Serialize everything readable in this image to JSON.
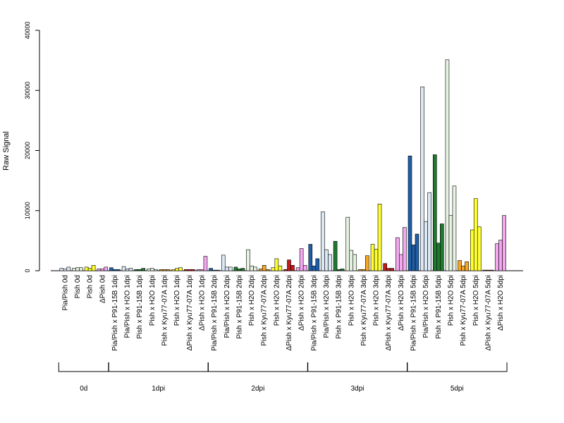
{
  "chart_data": {
    "type": "bar",
    "ylabel": "Raw Signal",
    "ylim": [
      0,
      40000
    ],
    "yticks": [
      0,
      10000,
      20000,
      30000,
      40000
    ],
    "ytick_labels": [
      "0",
      "10000",
      "20000",
      "30000",
      "40000"
    ],
    "groups": [
      {
        "name": "0d",
        "first": 0,
        "last": 3
      },
      {
        "name": "1dpi",
        "first": 4,
        "last": 11
      },
      {
        "name": "2dpi",
        "first": 12,
        "last": 19
      },
      {
        "name": "3dpi",
        "first": 20,
        "last": 27
      },
      {
        "name": "5dpi",
        "first": 28,
        "last": 35
      }
    ],
    "categories": [
      {
        "label": "Pia/Pish 0d",
        "color": "#dde8f5",
        "values": [
          400,
          300,
          600
        ]
      },
      {
        "label": "Pish 0d",
        "color": "#e6f2e2",
        "values": [
          400,
          500,
          500
        ]
      },
      {
        "label": "Pish 0d",
        "color": "#ffff33",
        "values": [
          600,
          400,
          900
        ]
      },
      {
        "label": "ΔPish 0d",
        "color": "#f4a8f0",
        "values": [
          300,
          300,
          600
        ]
      },
      {
        "label": "Pia/Pish x P91-15B 1dpi",
        "color": "#1f5fa8",
        "values": [
          500,
          200,
          200
        ]
      },
      {
        "label": "Pia/Pish x H2O 1dpi",
        "color": "#dde8f5",
        "values": [
          700,
          300,
          400
        ]
      },
      {
        "label": "Pish x P91-15B 1dpi",
        "color": "#1f7a2e",
        "values": [
          200,
          200,
          400
        ]
      },
      {
        "label": "Pish x H2O 1dpi",
        "color": "#e6f2e2",
        "values": [
          300,
          400,
          200
        ]
      },
      {
        "label": "Pish x Kyu77-07A 1dpi",
        "color": "#f5a623",
        "values": [
          200,
          200,
          200
        ]
      },
      {
        "label": "Pish x H2O 1dpi",
        "color": "#ffff33",
        "values": [
          200,
          400,
          500
        ]
      },
      {
        "label": "ΔPish x Kyu77-07A 1dpi",
        "color": "#c41a1a",
        "values": [
          200,
          200,
          200
        ]
      },
      {
        "label": "ΔPish x H2O 1dpi",
        "color": "#f4a8f0",
        "values": [
          200,
          200,
          2400
        ]
      },
      {
        "label": "Pia/Pish x P91-15B 2dpi",
        "color": "#1f5fa8",
        "values": [
          400,
          100,
          100
        ]
      },
      {
        "label": "Pia/Pish x H2O 2dpi",
        "color": "#dde8f5",
        "values": [
          2600,
          600,
          600
        ]
      },
      {
        "label": "Pish x P91-15B 2dpi",
        "color": "#1f7a2e",
        "values": [
          600,
          300,
          400
        ]
      },
      {
        "label": "Pish x H2O 2dpi",
        "color": "#e6f2e2",
        "values": [
          3500,
          800,
          600
        ]
      },
      {
        "label": "Pish x Kyu77-07A 2dpi",
        "color": "#f5a623",
        "values": [
          300,
          900,
          200
        ]
      },
      {
        "label": "Pish x H2O 2dpi",
        "color": "#ffff33",
        "values": [
          500,
          2000,
          800
        ]
      },
      {
        "label": "ΔPish x Kyu77-07A 2dpi",
        "color": "#c41a1a",
        "values": [
          200,
          1800,
          900
        ]
      },
      {
        "label": "ΔPish x H2O 2dpi",
        "color": "#f4a8f0",
        "values": [
          500,
          3700,
          900
        ]
      },
      {
        "label": "Pia/Pish x P91-15B 3dpi",
        "color": "#1f5fa8",
        "values": [
          4400,
          800,
          2000
        ]
      },
      {
        "label": "Pia/Pish x H2O 3dpi",
        "color": "#dde8f5",
        "values": [
          9800,
          3500,
          2700
        ]
      },
      {
        "label": "Pish x P91-15B 3dpi",
        "color": "#1f7a2e",
        "values": [
          4900,
          200,
          300
        ]
      },
      {
        "label": "Pish x H2O 3dpi",
        "color": "#e6f2e2",
        "values": [
          8900,
          3400,
          2700
        ]
      },
      {
        "label": "Pish x Kyu77-07A 3dpi",
        "color": "#f5a623",
        "values": [
          200,
          200,
          2500
        ]
      },
      {
        "label": "Pish x H2O 3dpi",
        "color": "#ffff33",
        "values": [
          4400,
          3600,
          11100
        ]
      },
      {
        "label": "ΔPish x Kyu77-07A 3dpi",
        "color": "#c41a1a",
        "values": [
          1200,
          400,
          400
        ]
      },
      {
        "label": "ΔPish x H2O 3dpi",
        "color": "#f4a8f0",
        "values": [
          5500,
          2700,
          7200
        ]
      },
      {
        "label": "Pia/Pish x P91-15B 5dpi",
        "color": "#1f5fa8",
        "values": [
          19100,
          4300,
          6100
        ]
      },
      {
        "label": "Pia/Pish x H2O 5dpi",
        "color": "#dde8f5",
        "values": [
          30600,
          8200,
          13000
        ]
      },
      {
        "label": "Pish x P91-15B 5dpi",
        "color": "#1f7a2e",
        "values": [
          19300,
          4600,
          7800
        ]
      },
      {
        "label": "Pish x H2O 5dpi",
        "color": "#e6f2e2",
        "values": [
          35100,
          9200,
          14100
        ]
      },
      {
        "label": "Pish x Kyu77-07A 5dpi",
        "color": "#f5a623",
        "values": [
          1700,
          800,
          1500
        ]
      },
      {
        "label": "Pish x H2O 5dpi",
        "color": "#ffff33",
        "values": [
          6800,
          12000,
          7300
        ]
      },
      {
        "label": "ΔPish x Kyu77-07A 5dpi",
        "color": "#c41a1a",
        "values": [
          100,
          100,
          100
        ]
      },
      {
        "label": "ΔPish x H2O 5dpi",
        "color": "#f4a8f0",
        "values": [
          4500,
          5100,
          9200
        ]
      }
    ]
  }
}
